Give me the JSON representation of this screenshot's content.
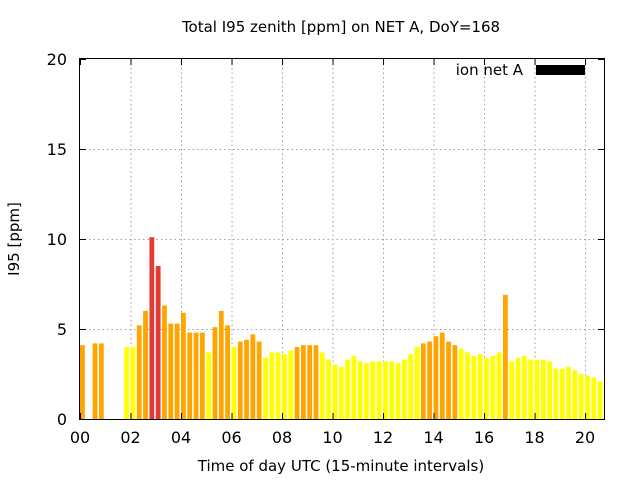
{
  "chart_data": {
    "type": "bar",
    "title": "Total I95 zenith [ppm] on NET A, DoY=168",
    "xlabel": "Time of day UTC (15-minute intervals)",
    "ylabel": "I95 [ppm]",
    "ylim": [
      0,
      20
    ],
    "xlim": [
      0,
      20.75
    ],
    "yticks": [
      0,
      5,
      10,
      15,
      20
    ],
    "xticks": [
      0,
      2,
      4,
      6,
      8,
      10,
      12,
      14,
      16,
      18,
      20
    ],
    "xtick_labels": [
      "00",
      "02",
      "04",
      "06",
      "08",
      "10",
      "12",
      "14",
      "16",
      "18",
      "20"
    ],
    "grid": true,
    "legend": {
      "label": "ion net A",
      "color": "#000000",
      "placement": "top-right"
    },
    "bar_width_hours": 0.19,
    "colors": {
      "yellow": "#ffff00",
      "orange": "#ffa500",
      "red": "#e53935",
      "green": "#7bbf2a"
    },
    "points": [
      {
        "t": 0.0,
        "v": 4.1,
        "c": "orange"
      },
      {
        "t": 0.5,
        "v": 4.2,
        "c": "orange"
      },
      {
        "t": 0.75,
        "v": 4.2,
        "c": "orange"
      },
      {
        "t": 1.75,
        "v": 4.0,
        "c": "yellow"
      },
      {
        "t": 2.0,
        "v": 4.0,
        "c": "yellow"
      },
      {
        "t": 2.25,
        "v": 5.2,
        "c": "orange"
      },
      {
        "t": 2.5,
        "v": 6.0,
        "c": "orange"
      },
      {
        "t": 2.75,
        "v": 10.1,
        "c": "red"
      },
      {
        "t": 3.0,
        "v": 8.5,
        "c": "red"
      },
      {
        "t": 3.25,
        "v": 6.3,
        "c": "orange"
      },
      {
        "t": 3.5,
        "v": 5.3,
        "c": "orange"
      },
      {
        "t": 3.75,
        "v": 5.3,
        "c": "orange"
      },
      {
        "t": 4.0,
        "v": 5.9,
        "c": "orange"
      },
      {
        "t": 4.25,
        "v": 4.8,
        "c": "orange"
      },
      {
        "t": 4.5,
        "v": 4.8,
        "c": "orange"
      },
      {
        "t": 4.75,
        "v": 4.8,
        "c": "orange"
      },
      {
        "t": 5.0,
        "v": 3.7,
        "c": "yellow"
      },
      {
        "t": 5.25,
        "v": 5.1,
        "c": "orange"
      },
      {
        "t": 5.5,
        "v": 6.0,
        "c": "orange"
      },
      {
        "t": 5.75,
        "v": 5.2,
        "c": "orange"
      },
      {
        "t": 6.0,
        "v": 4.0,
        "c": "yellow"
      },
      {
        "t": 6.25,
        "v": 4.3,
        "c": "orange"
      },
      {
        "t": 6.5,
        "v": 4.4,
        "c": "orange"
      },
      {
        "t": 6.75,
        "v": 4.7,
        "c": "orange"
      },
      {
        "t": 7.0,
        "v": 4.3,
        "c": "orange"
      },
      {
        "t": 7.25,
        "v": 3.4,
        "c": "yellow"
      },
      {
        "t": 7.5,
        "v": 3.7,
        "c": "yellow"
      },
      {
        "t": 7.75,
        "v": 3.7,
        "c": "yellow"
      },
      {
        "t": 8.0,
        "v": 3.6,
        "c": "yellow"
      },
      {
        "t": 8.25,
        "v": 3.8,
        "c": "yellow"
      },
      {
        "t": 8.5,
        "v": 4.0,
        "c": "orange"
      },
      {
        "t": 8.75,
        "v": 4.1,
        "c": "orange"
      },
      {
        "t": 9.0,
        "v": 4.1,
        "c": "orange"
      },
      {
        "t": 9.25,
        "v": 4.1,
        "c": "orange"
      },
      {
        "t": 9.5,
        "v": 3.7,
        "c": "yellow"
      },
      {
        "t": 9.75,
        "v": 3.3,
        "c": "yellow"
      },
      {
        "t": 10.0,
        "v": 3.0,
        "c": "yellow"
      },
      {
        "t": 10.25,
        "v": 2.9,
        "c": "yellow"
      },
      {
        "t": 10.5,
        "v": 3.3,
        "c": "yellow"
      },
      {
        "t": 10.75,
        "v": 3.5,
        "c": "yellow"
      },
      {
        "t": 11.0,
        "v": 3.2,
        "c": "yellow"
      },
      {
        "t": 11.25,
        "v": 3.1,
        "c": "yellow"
      },
      {
        "t": 11.5,
        "v": 3.2,
        "c": "yellow"
      },
      {
        "t": 11.75,
        "v": 3.2,
        "c": "yellow"
      },
      {
        "t": 12.0,
        "v": 3.2,
        "c": "yellow"
      },
      {
        "t": 12.25,
        "v": 3.2,
        "c": "yellow"
      },
      {
        "t": 12.5,
        "v": 3.1,
        "c": "yellow"
      },
      {
        "t": 12.75,
        "v": 3.3,
        "c": "yellow"
      },
      {
        "t": 13.0,
        "v": 3.6,
        "c": "yellow"
      },
      {
        "t": 13.25,
        "v": 4.0,
        "c": "yellow"
      },
      {
        "t": 13.5,
        "v": 4.2,
        "c": "orange"
      },
      {
        "t": 13.75,
        "v": 4.3,
        "c": "orange"
      },
      {
        "t": 14.0,
        "v": 4.6,
        "c": "orange"
      },
      {
        "t": 14.25,
        "v": 4.8,
        "c": "orange"
      },
      {
        "t": 14.5,
        "v": 4.3,
        "c": "orange"
      },
      {
        "t": 14.75,
        "v": 4.1,
        "c": "orange"
      },
      {
        "t": 15.0,
        "v": 3.9,
        "c": "yellow"
      },
      {
        "t": 15.25,
        "v": 3.7,
        "c": "yellow"
      },
      {
        "t": 15.5,
        "v": 3.5,
        "c": "yellow"
      },
      {
        "t": 15.75,
        "v": 3.6,
        "c": "yellow"
      },
      {
        "t": 16.0,
        "v": 3.4,
        "c": "yellow"
      },
      {
        "t": 16.25,
        "v": 3.5,
        "c": "yellow"
      },
      {
        "t": 16.5,
        "v": 3.7,
        "c": "yellow"
      },
      {
        "t": 16.75,
        "v": 6.9,
        "c": "orange"
      },
      {
        "t": 17.0,
        "v": 3.2,
        "c": "yellow"
      },
      {
        "t": 17.25,
        "v": 3.4,
        "c": "yellow"
      },
      {
        "t": 17.5,
        "v": 3.5,
        "c": "yellow"
      },
      {
        "t": 17.75,
        "v": 3.3,
        "c": "yellow"
      },
      {
        "t": 18.0,
        "v": 3.3,
        "c": "yellow"
      },
      {
        "t": 18.25,
        "v": 3.3,
        "c": "yellow"
      },
      {
        "t": 18.5,
        "v": 3.2,
        "c": "yellow"
      },
      {
        "t": 18.75,
        "v": 2.8,
        "c": "yellow"
      },
      {
        "t": 19.0,
        "v": 2.8,
        "c": "yellow"
      },
      {
        "t": 19.25,
        "v": 2.9,
        "c": "yellow"
      },
      {
        "t": 19.5,
        "v": 2.7,
        "c": "yellow"
      },
      {
        "t": 19.75,
        "v": 2.5,
        "c": "yellow"
      },
      {
        "t": 20.0,
        "v": 2.4,
        "c": "yellow"
      },
      {
        "t": 20.25,
        "v": 2.3,
        "c": "yellow"
      },
      {
        "t": 20.5,
        "v": 2.1,
        "c": "yellow"
      },
      {
        "t": 20.75,
        "v": 2.0,
        "c": "green"
      }
    ]
  }
}
